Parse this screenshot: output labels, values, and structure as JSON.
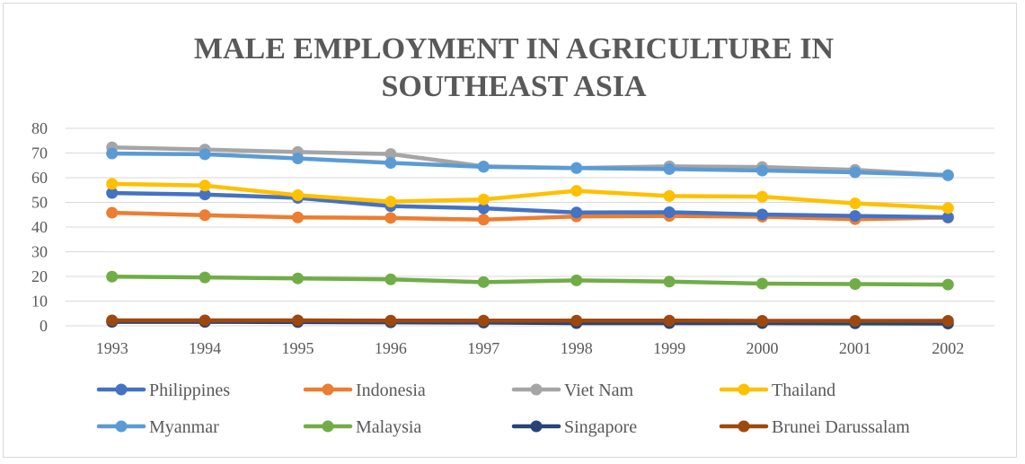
{
  "chart_data": {
    "type": "line",
    "title": "MALE EMPLOYMENT IN AGRICULTURE IN SOUTHEAST ASIA",
    "title_lines": [
      "MALE EMPLOYMENT IN AGRICULTURE IN",
      "SOUTHEAST ASIA"
    ],
    "xlabel": "",
    "ylabel": "",
    "categories": [
      "1993",
      "1994",
      "1995",
      "1996",
      "1997",
      "1998",
      "1999",
      "2000",
      "2001",
      "2002"
    ],
    "ylim": [
      0,
      80
    ],
    "yticks": [
      0,
      10,
      20,
      30,
      40,
      50,
      60,
      70,
      80
    ],
    "grid": true,
    "legend_position": "bottom",
    "series": [
      {
        "name": "Philippines",
        "color": "#4472c4",
        "values": [
          53.8,
          53.2,
          51.8,
          48.5,
          47.6,
          45.9,
          46.0,
          45.1,
          44.5,
          44.0
        ]
      },
      {
        "name": "Indonesia",
        "color": "#ed7d31",
        "values": [
          45.8,
          44.8,
          43.9,
          43.7,
          43.0,
          44.3,
          44.5,
          44.2,
          43.2,
          43.8
        ]
      },
      {
        "name": "Viet Nam",
        "color": "#a5a5a5",
        "values": [
          72.3,
          71.4,
          70.4,
          69.6,
          64.6,
          63.9,
          64.6,
          64.3,
          63.2,
          61.0
        ]
      },
      {
        "name": "Thailand",
        "color": "#ffc000",
        "values": [
          57.5,
          56.8,
          52.9,
          50.3,
          51.2,
          54.7,
          52.6,
          52.3,
          49.6,
          47.7
        ]
      },
      {
        "name": "Myanmar",
        "color": "#5b9bd5",
        "values": [
          69.8,
          69.5,
          67.8,
          66.0,
          64.4,
          63.9,
          63.5,
          62.9,
          62.2,
          61.0
        ]
      },
      {
        "name": "Malaysia",
        "color": "#70ad47",
        "values": [
          19.9,
          19.6,
          19.2,
          18.8,
          17.7,
          18.4,
          17.9,
          17.1,
          16.9,
          16.7
        ]
      },
      {
        "name": "Singapore",
        "color": "#264478",
        "values": [
          1.6,
          1.6,
          1.5,
          1.4,
          1.3,
          1.1,
          1.1,
          1.1,
          1.0,
          0.9
        ]
      },
      {
        "name": "Brunei Darussalam",
        "color": "#9e480e",
        "values": [
          2.2,
          2.2,
          2.2,
          2.1,
          2.1,
          2.1,
          2.1,
          2.0,
          2.0,
          2.0
        ]
      }
    ]
  }
}
